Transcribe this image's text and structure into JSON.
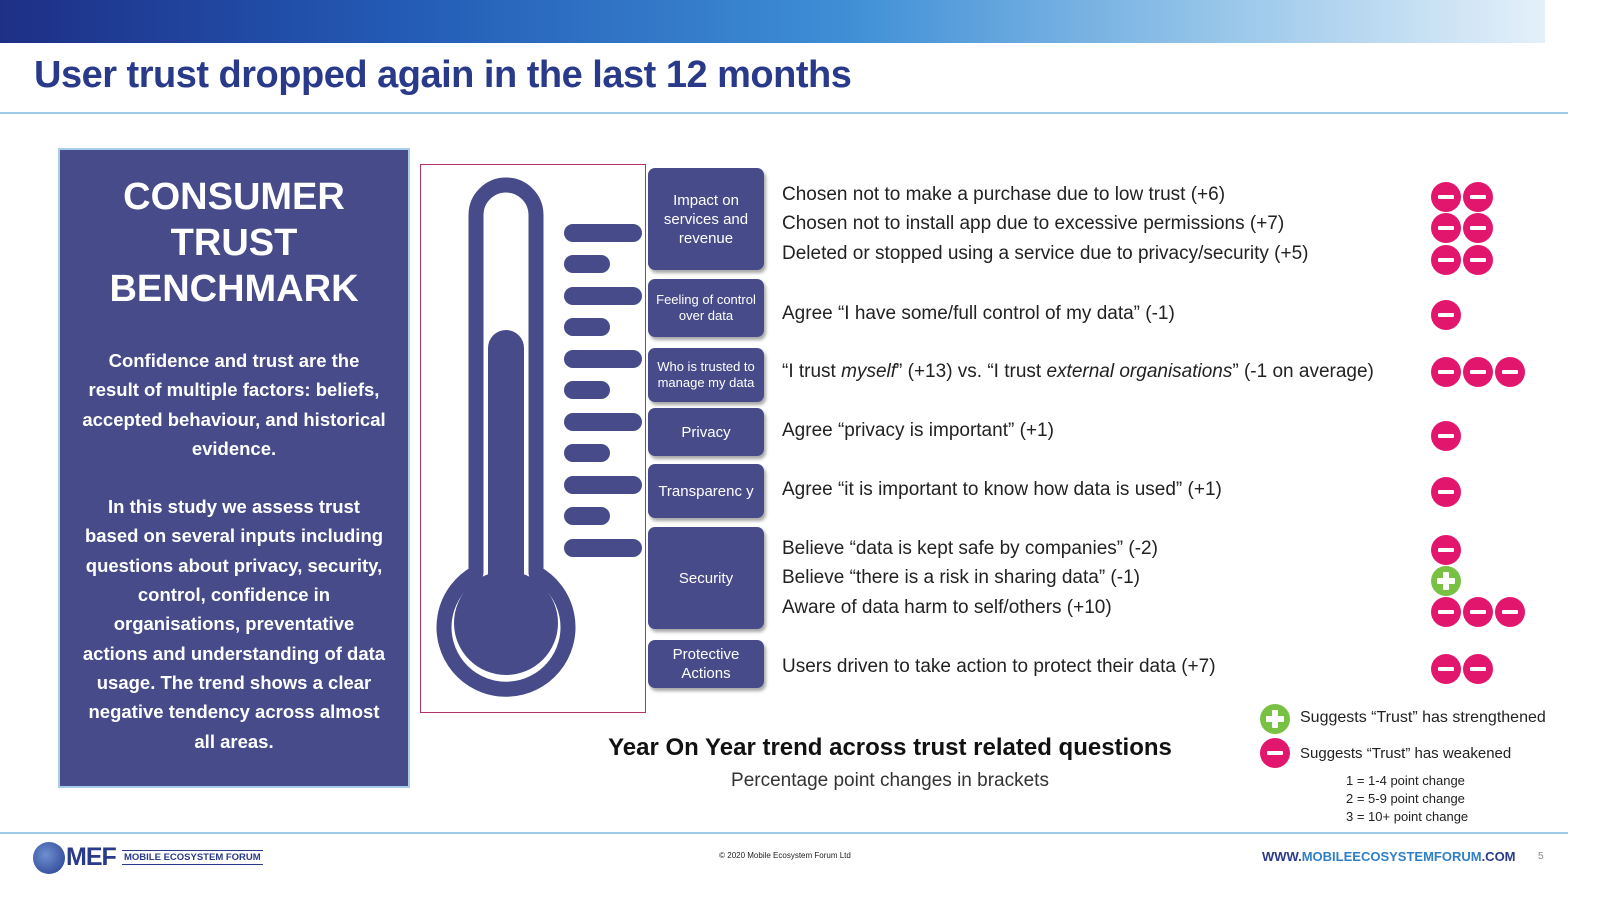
{
  "slide": {
    "title": "User trust dropped again in the last 12 months",
    "page_number": "5"
  },
  "panel": {
    "heading_lines": [
      "CONSUMER",
      "TRUST",
      "BENCHMARK"
    ],
    "paragraph1": "Confidence and trust are the result of multiple factors: beliefs, accepted behaviour, and historical evidence.",
    "paragraph2": "In this study we assess trust based on several inputs including questions about privacy, security, control, confidence in organisations, preventative actions and understanding of data usage. The trend shows a clear negative tendency across almost all areas."
  },
  "categories": [
    {
      "label": "Impact on services and revenue"
    },
    {
      "label": "Feeling of control over data"
    },
    {
      "label": "Who is trusted to manage my data"
    },
    {
      "label": "Privacy"
    },
    {
      "label": "Transparenc y"
    },
    {
      "label": "Security"
    },
    {
      "label": "Protective Actions"
    }
  ],
  "statements": [
    {
      "text": "Chosen not to make a purchase due to low trust (+6)",
      "icons": [
        "minus",
        "minus"
      ]
    },
    {
      "text": "Chosen not to install app due to excessive permissions (+7)",
      "icons": [
        "minus",
        "minus"
      ]
    },
    {
      "text": "Deleted or stopped using a service due to privacy/security (+5)",
      "icons": [
        "minus",
        "minus"
      ]
    },
    {
      "text": "Agree “I have some/full control of my data” (-1)",
      "icons": [
        "minus"
      ]
    },
    {
      "parts": [
        "“I trust ",
        "myself",
        "” (+13) vs. “I trust ",
        "external organisations",
        "” (-1 on average)"
      ],
      "icons": [
        "minus",
        "minus",
        "minus"
      ]
    },
    {
      "text": "Agree “privacy is important” (+1)",
      "icons": [
        "minus"
      ]
    },
    {
      "text": "Agree “it is important to know how data is used”  (+1)",
      "icons": [
        "minus"
      ]
    },
    {
      "text": "Believe “data is kept safe by companies” (-2)",
      "icons": [
        "minus"
      ]
    },
    {
      "text": "Believe “there is a risk in sharing data” (-1)",
      "icons": [
        "plus"
      ]
    },
    {
      "text": "Aware of data harm to self/others (+10)",
      "icons": [
        "minus",
        "minus",
        "minus"
      ]
    },
    {
      "text": "Users driven to take action to protect their data (+7)",
      "icons": [
        "minus",
        "minus"
      ]
    }
  ],
  "trend": {
    "title": "Year On Year trend across trust related questions",
    "subtitle": "Percentage point changes in brackets"
  },
  "legend": {
    "strengthened": "Suggests “Trust” has strengthened",
    "weakened": "Suggests “Trust” has weakened",
    "scale": [
      "1 = 1-4 point change",
      "2 = 5-9 point change",
      "3 = 10+ point change"
    ]
  },
  "footer": {
    "logo_text": "MEF",
    "logo_subtext": "MOBILE ECOSYSTEM FORUM",
    "copyright": "© 2020 Mobile Ecosystem Forum Ltd",
    "website_prefix": "WWW.",
    "website_highlight": "MOBILEECOSYSTEMFORUM",
    "website_suffix": ".COM"
  },
  "colors": {
    "navy": "#474b8a",
    "title": "#2a3a8a",
    "minus": "#e2166d",
    "plus": "#79c142",
    "rule": "#9ec9e8"
  },
  "icons": {
    "minus": "minus-circle-icon",
    "plus": "plus-circle-icon",
    "thermometer": "thermometer-icon",
    "logo": "globe-logo-icon"
  }
}
